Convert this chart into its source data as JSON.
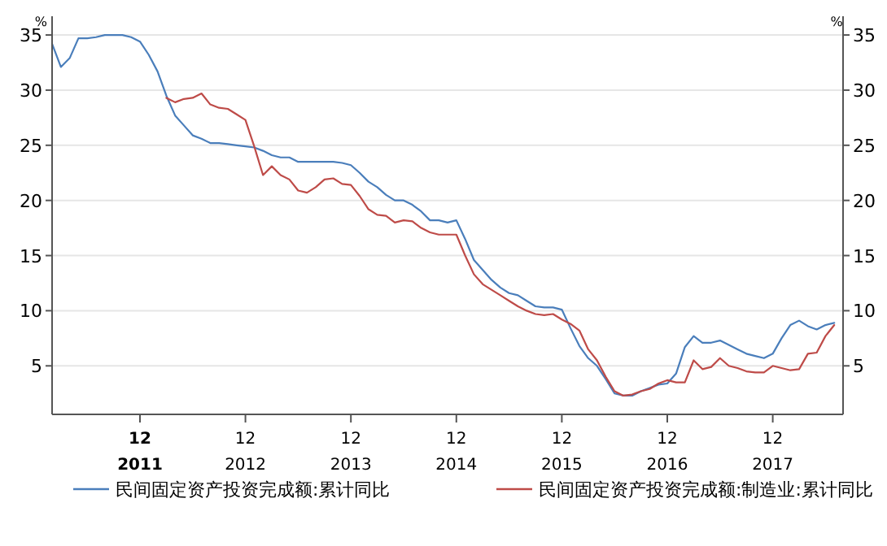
{
  "chart_data": {
    "type": "line",
    "ylabel": "%",
    "y2label": "%",
    "xlim": [
      "2011-02",
      "2018-08"
    ],
    "xticks": [
      {
        "value": "2011-12",
        "label": "12\n2011"
      },
      {
        "value": "2012-12",
        "label": "12\n2012"
      },
      {
        "value": "2013-12",
        "label": "12\n2013"
      },
      {
        "value": "2014-12",
        "label": "12\n2014"
      },
      {
        "value": "2015-12",
        "label": "12\n2015"
      },
      {
        "value": "2016-12",
        "label": "12\n2016"
      },
      {
        "value": "2017-12",
        "label": "12\n2017"
      }
    ],
    "ylim": [
      0.6,
      36.7
    ],
    "yticks": [
      5,
      10,
      15,
      20,
      25,
      30,
      35
    ],
    "y2lim": [
      0.6,
      36.7
    ],
    "y2ticks": [
      5,
      10,
      15,
      20,
      25,
      30,
      35
    ],
    "grid": "y",
    "legend": "bottom",
    "marker": "none",
    "line_style": "solid",
    "series": [
      {
        "name": "民间固定资产投资完成额:累计同比",
        "color": "#4a7ebb",
        "x": [
          "2011-02",
          "2011-03",
          "2011-04",
          "2011-05",
          "2011-06",
          "2011-07",
          "2011-08",
          "2011-09",
          "2011-10",
          "2011-11",
          "2011-12",
          "2012-01",
          "2012-02",
          "2012-03",
          "2012-04",
          "2012-05",
          "2012-06",
          "2012-07",
          "2012-08",
          "2012-09",
          "2012-10",
          "2012-11",
          "2012-12",
          "2013-01",
          "2013-02",
          "2013-03",
          "2013-04",
          "2013-05",
          "2013-06",
          "2013-07",
          "2013-08",
          "2013-09",
          "2013-10",
          "2013-11",
          "2013-12",
          "2014-01",
          "2014-02",
          "2014-03",
          "2014-04",
          "2014-05",
          "2014-06",
          "2014-07",
          "2014-08",
          "2014-09",
          "2014-10",
          "2014-11",
          "2014-12",
          "2015-01",
          "2015-02",
          "2015-03",
          "2015-04",
          "2015-05",
          "2015-06",
          "2015-07",
          "2015-08",
          "2015-09",
          "2015-10",
          "2015-11",
          "2015-12",
          "2016-01",
          "2016-02",
          "2016-03",
          "2016-04",
          "2016-05",
          "2016-06",
          "2016-07",
          "2016-08",
          "2016-09",
          "2016-10",
          "2016-11",
          "2016-12",
          "2017-01",
          "2017-02",
          "2017-03",
          "2017-04",
          "2017-05",
          "2017-06",
          "2017-07",
          "2017-08",
          "2017-09",
          "2017-10",
          "2017-11",
          "2017-12",
          "2018-01",
          "2018-02",
          "2018-03",
          "2018-04",
          "2018-05",
          "2018-06",
          "2018-07"
        ],
        "values": [
          34.2,
          32.1,
          32.9,
          34.7,
          34.7,
          34.8,
          35.0,
          35.0,
          35.0,
          34.8,
          34.4,
          33.2,
          31.7,
          29.5,
          27.7,
          26.8,
          25.9,
          25.6,
          25.2,
          25.2,
          25.1,
          25.0,
          24.9,
          24.8,
          24.5,
          24.1,
          23.9,
          23.9,
          23.5,
          23.5,
          23.5,
          23.5,
          23.5,
          23.4,
          23.2,
          22.5,
          21.7,
          21.2,
          20.5,
          20.0,
          20.0,
          19.6,
          19.0,
          18.2,
          18.2,
          18.0,
          18.2,
          16.5,
          14.6,
          13.7,
          12.8,
          12.1,
          11.6,
          11.4,
          10.9,
          10.4,
          10.3,
          10.3,
          10.1,
          8.4,
          6.8,
          5.7,
          5.0,
          3.8,
          2.5,
          2.3,
          2.3,
          2.7,
          3.0,
          3.3,
          3.4,
          4.3,
          6.7,
          7.7,
          7.1,
          7.1,
          7.3,
          6.9,
          6.5,
          6.1,
          5.9,
          5.7,
          6.1,
          7.5,
          8.7,
          9.1,
          8.6,
          8.3,
          8.7,
          8.9
        ]
      },
      {
        "name": "民间固定资产投资完成额:制造业:累计同比",
        "color": "#be4b48",
        "x": [
          "2012-03",
          "2012-04",
          "2012-05",
          "2012-06",
          "2012-07",
          "2012-08",
          "2012-09",
          "2012-10",
          "2012-11",
          "2012-12",
          "2013-01",
          "2013-02",
          "2013-03",
          "2013-04",
          "2013-05",
          "2013-06",
          "2013-07",
          "2013-08",
          "2013-09",
          "2013-10",
          "2013-11",
          "2013-12",
          "2014-01",
          "2014-02",
          "2014-03",
          "2014-04",
          "2014-05",
          "2014-06",
          "2014-07",
          "2014-08",
          "2014-09",
          "2014-10",
          "2014-11",
          "2014-12",
          "2015-01",
          "2015-02",
          "2015-03",
          "2015-04",
          "2015-05",
          "2015-06",
          "2015-07",
          "2015-08",
          "2015-09",
          "2015-10",
          "2015-11",
          "2015-12",
          "2016-01",
          "2016-02",
          "2016-03",
          "2016-04",
          "2016-05",
          "2016-06",
          "2016-07",
          "2016-08",
          "2016-09",
          "2016-10",
          "2016-11",
          "2016-12",
          "2017-01",
          "2017-02",
          "2017-03",
          "2017-04",
          "2017-05",
          "2017-06",
          "2017-07",
          "2017-08",
          "2017-09",
          "2017-10",
          "2017-11",
          "2017-12",
          "2018-01",
          "2018-02",
          "2018-03",
          "2018-04",
          "2018-05",
          "2018-06",
          "2018-07"
        ],
        "values": [
          29.3,
          28.9,
          29.2,
          29.3,
          29.7,
          28.7,
          28.4,
          28.3,
          27.8,
          27.3,
          24.9,
          22.3,
          23.1,
          22.3,
          21.9,
          20.9,
          20.7,
          21.2,
          21.9,
          22.0,
          21.5,
          21.4,
          20.4,
          19.2,
          18.7,
          18.6,
          18.0,
          18.2,
          18.1,
          17.5,
          17.1,
          16.9,
          16.9,
          16.9,
          15.0,
          13.3,
          12.4,
          11.9,
          11.4,
          10.9,
          10.4,
          10.0,
          9.7,
          9.6,
          9.7,
          9.2,
          8.8,
          8.2,
          6.5,
          5.5,
          4.0,
          2.7,
          2.3,
          2.4,
          2.7,
          2.9,
          3.4,
          3.7,
          3.5,
          3.5,
          5.5,
          4.7,
          4.9,
          5.7,
          5.0,
          4.8,
          4.5,
          4.4,
          4.4,
          5.0,
          4.8,
          4.6,
          4.7,
          6.1,
          6.2,
          7.7,
          8.7
        ]
      }
    ]
  }
}
